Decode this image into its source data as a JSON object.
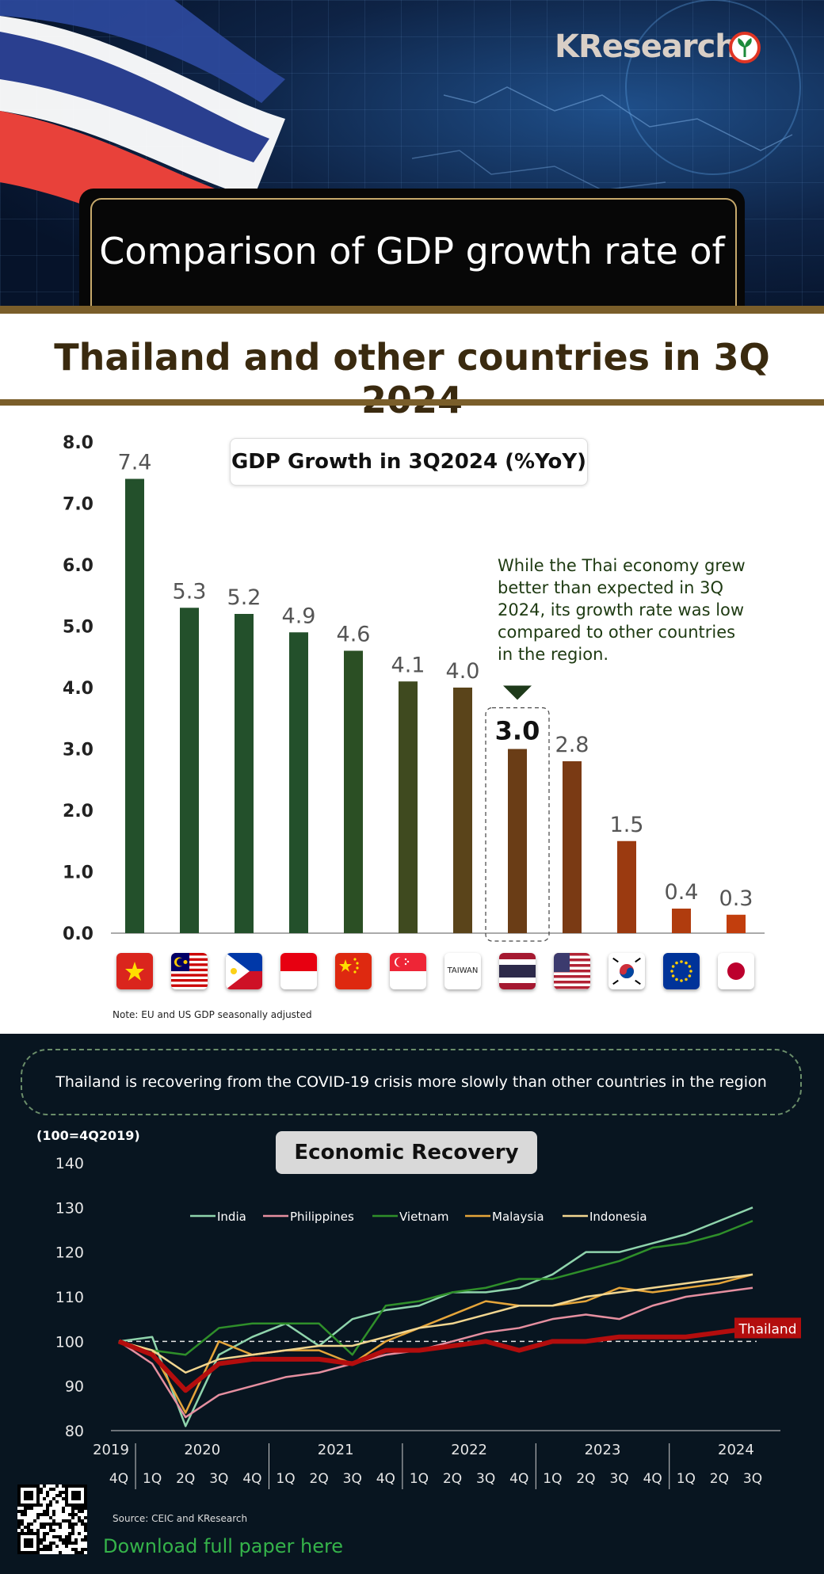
{
  "logo": {
    "text": "KResearch"
  },
  "header": {
    "title_line1": "Comparison of GDP growth rate of",
    "title_line2": "Thailand and other countries in 3Q 2024"
  },
  "chart_data": [
    {
      "type": "bar",
      "title": "GDP Growth in 3Q2024 (%YoY)",
      "categories": [
        "Vietnam",
        "Malaysia",
        "Philippines",
        "Indonesia",
        "China",
        "Singapore",
        "TAIWAN",
        "Thailand",
        "USA",
        "South Korea",
        "EU",
        "Japan"
      ],
      "values": [
        7.4,
        5.3,
        5.2,
        4.9,
        4.6,
        4.1,
        4.0,
        3.0,
        2.8,
        1.5,
        0.4,
        0.3
      ],
      "value_labels": [
        "7.4",
        "5.3",
        "5.2",
        "4.9",
        "4.6",
        "4.1",
        "4.0",
        "3.0",
        "2.8",
        "1.5",
        "0.4",
        "0.3"
      ],
      "yticks": [
        "0.0",
        "1.0",
        "2.0",
        "3.0",
        "4.0",
        "5.0",
        "6.0",
        "7.0",
        "8.0"
      ],
      "ylim": [
        0,
        8
      ],
      "highlight": "Thailand",
      "annotation": "While the Thai economy grew better than expected in 3Q 2024, its growth rate was low compared to other countries in the region.",
      "note": "Note: EU and US GDP seasonally adjusted",
      "colors": [
        "#23502b",
        "#23502b",
        "#23502b",
        "#23502b",
        "#2b4f24",
        "#3f4a1f",
        "#5a441a",
        "#6a3d16",
        "#7a3a14",
        "#9b3a10",
        "#b03c0e",
        "#c23e0d"
      ]
    },
    {
      "type": "line",
      "title": "Economic Recovery",
      "ylabel": "(100=4Q2019)",
      "ylim": [
        80,
        140
      ],
      "yticks": [
        "80",
        "90",
        "100",
        "110",
        "120",
        "130",
        "140"
      ],
      "x": [
        "4Q19",
        "1Q20",
        "2Q20",
        "3Q20",
        "4Q20",
        "1Q21",
        "2Q21",
        "3Q21",
        "4Q21",
        "1Q22",
        "2Q22",
        "3Q22",
        "4Q22",
        "1Q23",
        "2Q23",
        "3Q23",
        "4Q23",
        "1Q24",
        "2Q24",
        "3Q24"
      ],
      "quarter_labels": [
        "4Q",
        "1Q",
        "2Q",
        "3Q",
        "4Q",
        "1Q",
        "2Q",
        "3Q",
        "4Q",
        "1Q",
        "2Q",
        "3Q",
        "4Q",
        "1Q",
        "2Q",
        "3Q",
        "4Q",
        "1Q",
        "2Q",
        "3Q"
      ],
      "year_labels": [
        "2019",
        "2020",
        "2021",
        "2022",
        "2023",
        "2024"
      ],
      "baseline": 100,
      "series": [
        {
          "name": "India",
          "color": "#8fd4ac",
          "values": [
            100,
            101,
            81,
            97,
            101,
            104,
            99,
            105,
            107,
            108,
            111,
            111,
            112,
            115,
            120,
            120,
            122,
            124,
            127,
            130
          ]
        },
        {
          "name": "Philippines",
          "color": "#e58fa0",
          "values": [
            100,
            95,
            83,
            88,
            90,
            92,
            93,
            95,
            97,
            98,
            100,
            102,
            103,
            105,
            106,
            105,
            108,
            110,
            111,
            112
          ]
        },
        {
          "name": "Vietnam",
          "color": "#2f8f2a",
          "values": [
            100,
            98,
            97,
            103,
            104,
            104,
            104,
            97,
            108,
            109,
            111,
            112,
            114,
            114,
            116,
            118,
            121,
            122,
            124,
            127
          ]
        },
        {
          "name": "Malaysia",
          "color": "#e5a53a",
          "values": [
            100,
            98,
            84,
            100,
            97,
            98,
            98,
            95,
            100,
            103,
            106,
            109,
            108,
            108,
            109,
            112,
            111,
            112,
            113,
            115
          ]
        },
        {
          "name": "Indonesia",
          "color": "#f2d690",
          "values": [
            100,
            98,
            93,
            96,
            97,
            98,
            99,
            99,
            101,
            103,
            104,
            106,
            108,
            108,
            110,
            111,
            112,
            113,
            114,
            115
          ]
        },
        {
          "name": "Thailand",
          "color": "#b30d0d",
          "values": [
            100,
            97,
            89,
            95,
            96,
            96,
            96,
            95,
            98,
            98,
            99,
            100,
            98,
            100,
            100,
            101,
            101,
            101,
            102,
            103
          ]
        }
      ],
      "source": "Source: CEIC and KResearch"
    }
  ],
  "banner": {
    "text": "Thailand is recovering from the COVID-19 crisis more slowly than other countries in the region"
  },
  "taiwan_label": "TAIWAN",
  "footer": {
    "download": "Download full paper here"
  }
}
